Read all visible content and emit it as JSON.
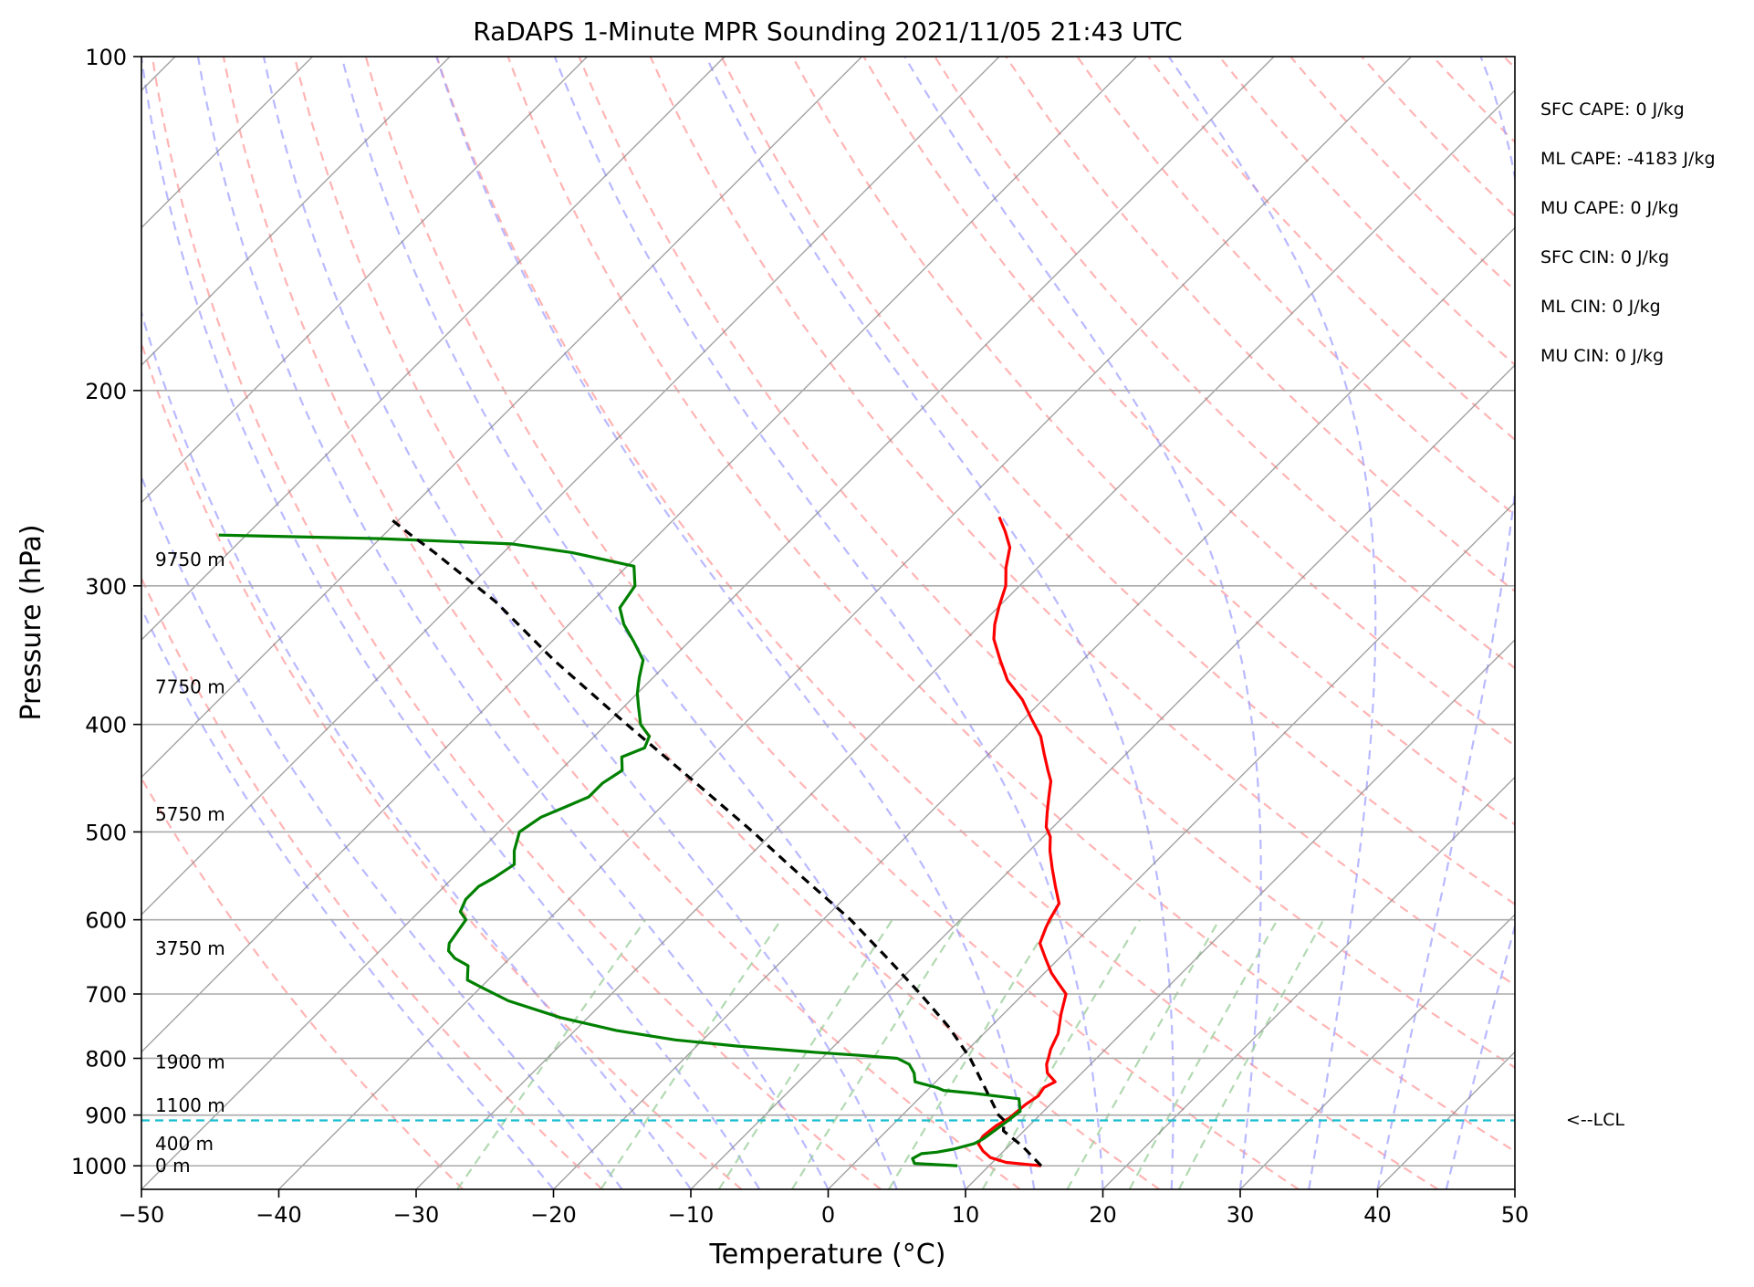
{
  "chart_data": {
    "type": "line",
    "title": "RaDAPS 1-Minute MPR Sounding 2021/11/05 21:43 UTC",
    "xlabel": "Temperature (°C)",
    "ylabel": "Pressure (hPa)",
    "xlim": [
      -50,
      50
    ],
    "ylim": [
      1050,
      100
    ],
    "y_scale": "log",
    "skew": "skew-T (isotherms slanted)",
    "x_ticks": [
      -50,
      -40,
      -30,
      -20,
      -10,
      0,
      10,
      20,
      30,
      40,
      50
    ],
    "x_tick_labels": [
      "−50",
      "−40",
      "−30",
      "−20",
      "−10",
      "0",
      "10",
      "20",
      "30",
      "40",
      "50"
    ],
    "y_ticks": [
      100,
      200,
      300,
      400,
      500,
      600,
      700,
      800,
      900,
      1000
    ],
    "y_tick_labels": [
      "100",
      "200",
      "300",
      "400",
      "500",
      "600",
      "700",
      "800",
      "900",
      "1000"
    ],
    "grid": true,
    "colors": {
      "temperature": "#ff0000",
      "dewpoint": "#008000",
      "parcel": "#000000",
      "lcl": "#17becf",
      "dry_adiabats": "#ff9b9b",
      "moist_adiabats": "#9b9bff",
      "mixing_ratio": "#9fd09f",
      "isotherms": "#8c8c8c"
    },
    "series": [
      {
        "key": "temperature",
        "points": [
          [
            13.8,
            1000
          ],
          [
            11.0,
            993
          ],
          [
            9.5,
            983
          ],
          [
            8.5,
            970
          ],
          [
            7.6,
            955
          ],
          [
            7.4,
            940
          ],
          [
            7.6,
            920
          ],
          [
            8.0,
            905
          ],
          [
            8.2,
            880
          ],
          [
            8.5,
            865
          ],
          [
            8.3,
            850
          ],
          [
            8.7,
            840
          ],
          [
            7.5,
            825
          ],
          [
            6.8,
            810
          ],
          [
            6.5,
            800
          ],
          [
            6.0,
            785
          ],
          [
            5.4,
            760
          ],
          [
            4.2,
            730
          ],
          [
            3.1,
            700
          ],
          [
            1.8,
            685
          ],
          [
            0.5,
            670
          ],
          [
            -1.0,
            650
          ],
          [
            -2.5,
            630
          ],
          [
            -3.2,
            610
          ],
          [
            -3.5,
            600
          ],
          [
            -4.0,
            580
          ],
          [
            -5.5,
            560
          ],
          [
            -7.0,
            540
          ],
          [
            -8.5,
            520
          ],
          [
            -9.5,
            505
          ],
          [
            -10.5,
            495
          ],
          [
            -11.5,
            480
          ],
          [
            -12.5,
            465
          ],
          [
            -13.5,
            450
          ],
          [
            -14.5,
            440
          ],
          [
            -16.0,
            425
          ],
          [
            -17.5,
            410
          ],
          [
            -19.5,
            395
          ],
          [
            -21.5,
            380
          ],
          [
            -24.0,
            365
          ],
          [
            -26.0,
            350
          ],
          [
            -28.0,
            335
          ],
          [
            -29.0,
            325
          ],
          [
            -30.0,
            313
          ],
          [
            -31.0,
            300
          ],
          [
            -32.3,
            289
          ],
          [
            -33.5,
            277
          ],
          [
            -35.0,
            268
          ],
          [
            -36.5,
            260
          ]
        ]
      },
      {
        "key": "dewpoint",
        "points": [
          [
            7.7,
            1000
          ],
          [
            4.4,
            995
          ],
          [
            3.9,
            985
          ],
          [
            4.2,
            975
          ],
          [
            5.2,
            972
          ],
          [
            6.2,
            966
          ],
          [
            7.3,
            955
          ],
          [
            7.6,
            946
          ],
          [
            7.7,
            940
          ],
          [
            8.1,
            910
          ],
          [
            8.2,
            900
          ],
          [
            8.3,
            893
          ],
          [
            7.3,
            870
          ],
          [
            3.5,
            860
          ],
          [
            1.2,
            855
          ],
          [
            0.5,
            850
          ],
          [
            -1.5,
            840
          ],
          [
            -2.2,
            825
          ],
          [
            -3.2,
            810
          ],
          [
            -4.5,
            800
          ],
          [
            -7.5,
            795
          ],
          [
            -11.0,
            790
          ],
          [
            -17.0,
            780
          ],
          [
            -22.0,
            770
          ],
          [
            -27.0,
            755
          ],
          [
            -32.0,
            735
          ],
          [
            -37.0,
            710
          ],
          [
            -40.0,
            690
          ],
          [
            -41.5,
            680
          ],
          [
            -42.0,
            670
          ],
          [
            -42.5,
            660
          ],
          [
            -44.0,
            650
          ],
          [
            -45.0,
            640
          ],
          [
            -45.5,
            630
          ],
          [
            -46.0,
            600
          ],
          [
            -47.0,
            590
          ],
          [
            -47.5,
            575
          ],
          [
            -47.5,
            560
          ],
          [
            -47.0,
            550
          ],
          [
            -46.5,
            535
          ],
          [
            -47.5,
            520
          ],
          [
            -48.5,
            500
          ],
          [
            -48.0,
            485
          ],
          [
            -47.0,
            475
          ],
          [
            -46.0,
            465
          ],
          [
            -46.0,
            452
          ],
          [
            -45.5,
            440
          ],
          [
            -46.5,
            428
          ],
          [
            -45.5,
            420
          ],
          [
            -46.0,
            410
          ],
          [
            -47.5,
            400
          ],
          [
            -49.0,
            385
          ],
          [
            -50.0,
            375
          ],
          [
            -51.0,
            363
          ],
          [
            -52.0,
            350
          ],
          [
            -54.0,
            337
          ],
          [
            -56.0,
            325
          ],
          [
            -57.5,
            314
          ],
          [
            -58.0,
            300
          ],
          [
            -59.5,
            288
          ],
          [
            -65.0,
            280
          ],
          [
            -70.0,
            275
          ],
          [
            -80.0,
            272
          ],
          [
            -92.0,
            270
          ]
        ]
      },
      {
        "key": "parcel",
        "points": [
          [
            13.8,
            1000
          ],
          [
            11.0,
            960
          ],
          [
            8.5,
            930
          ],
          [
            7.8,
            910
          ],
          [
            7.0,
            900
          ],
          [
            4.0,
            850
          ],
          [
            0.8,
            800
          ],
          [
            -3.0,
            750
          ],
          [
            -7.5,
            700
          ],
          [
            -12.5,
            650
          ],
          [
            -18.0,
            600
          ],
          [
            -24.5,
            550
          ],
          [
            -31.5,
            500
          ],
          [
            -39.5,
            450
          ],
          [
            -48.5,
            400
          ],
          [
            -58.5,
            350
          ],
          [
            -67.0,
            310
          ],
          [
            -75.0,
            280
          ],
          [
            -78.0,
            270
          ],
          [
            -81.0,
            260
          ]
        ]
      }
    ],
    "lcl": {
      "pressure": 910,
      "label": "<--LCL"
    },
    "height_labels": [
      {
        "text": "0 m",
        "p": 1000
      },
      {
        "text": "400 m",
        "p": 955
      },
      {
        "text": "1100 m",
        "p": 882
      },
      {
        "text": "1900 m",
        "p": 806
      },
      {
        "text": "3750 m",
        "p": 637
      },
      {
        "text": "5750 m",
        "p": 482
      },
      {
        "text": "7750 m",
        "p": 370
      },
      {
        "text": "9750 m",
        "p": 284
      }
    ],
    "annotations": [
      "SFC CAPE: 0 J/kg",
      "ML CAPE: -4183 J/kg",
      "MU CAPE: 0 J/kg",
      "SFC CIN: 0 J/kg",
      "ML CIN: 0 J/kg",
      "MU CIN: 0 J/kg"
    ]
  }
}
